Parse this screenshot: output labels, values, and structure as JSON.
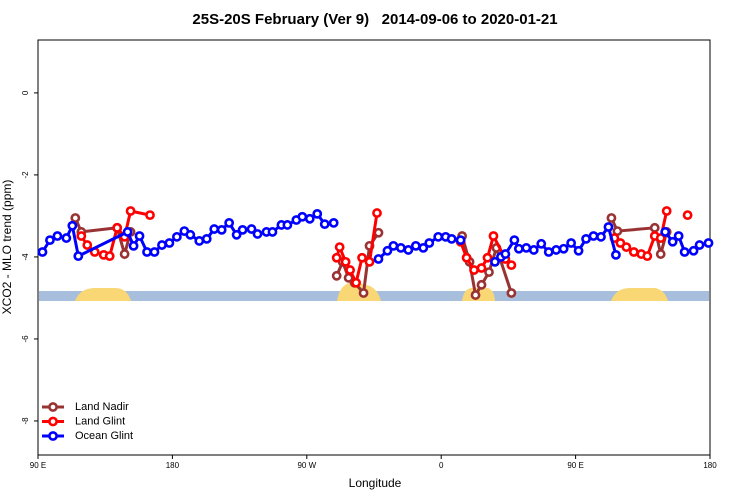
{
  "chart_data": {
    "type": "line",
    "title": "25S-20S February (Ver 9)   2014-09-06 to 2020-01-21",
    "x_label": "Longitude",
    "y_label": "XCO2 - MLO trend (ppm)",
    "xlim": [
      90,
      540
    ],
    "ylim": [
      -8.83,
      1.29
    ],
    "xticks": [
      {
        "value": 90,
        "label": "90 E"
      },
      180,
      {
        "value": 270,
        "label": "90 W"
      },
      {
        "value": 360,
        "label": "0"
      },
      {
        "value": 450,
        "label": "90 E"
      },
      {
        "value": 540,
        "label": "180"
      }
    ],
    "yticks": [
      0,
      -2,
      -4,
      -6,
      -8
    ],
    "legend": "bottom-left",
    "series": [
      {
        "name": "Land Nadir",
        "color": "#993333",
        "x": [
          115,
          119,
          143,
          148,
          152,
          null,
          290,
          294,
          298,
          302,
          308,
          312,
          318,
          null,
          374,
          379,
          383,
          387,
          392,
          397,
          407,
          null,
          474,
          478,
          503,
          507,
          511
        ],
        "values": [
          -3.05,
          -3.39,
          -3.29,
          -3.93,
          -3.39,
          null,
          -4.46,
          -4.12,
          -4.51,
          -4.63,
          -4.88,
          -3.73,
          -3.41,
          null,
          -3.49,
          -4.12,
          -4.93,
          -4.68,
          -4.37,
          -3.78,
          -4.88,
          null,
          -3.05,
          -3.37,
          -3.29,
          -3.93,
          -3.39
        ]
      },
      {
        "name": "Land Glint",
        "color": "#ff0000",
        "x": [
          119,
          123,
          128,
          134,
          138,
          143,
          148,
          152,
          165,
          null,
          290,
          292,
          296,
          299,
          303,
          307,
          312,
          317,
          null,
          373,
          377,
          382,
          387,
          391,
          395,
          403,
          407,
          null,
          476,
          480,
          484,
          489,
          494,
          498,
          503,
          507,
          511,
          null,
          525
        ],
        "values": [
          -3.49,
          -3.71,
          -3.88,
          -3.95,
          -3.98,
          -3.29,
          -3.51,
          -2.88,
          -2.98,
          null,
          -4.02,
          -3.76,
          -4.12,
          -4.32,
          -4.63,
          -4.02,
          -4.12,
          -2.93,
          null,
          -3.63,
          -4.02,
          -4.32,
          -4.27,
          -4.02,
          -3.49,
          -4.05,
          -4.2,
          null,
          -3.54,
          -3.66,
          -3.76,
          -3.88,
          -3.93,
          -3.98,
          -3.49,
          -3.54,
          -2.88,
          null,
          -2.98
        ]
      },
      {
        "name": "Ocean Glint",
        "color": "#0000ff",
        "x": [
          93,
          98,
          103,
          109,
          113,
          117,
          150,
          154,
          158,
          163,
          168,
          173,
          178,
          183,
          188,
          192,
          198,
          203,
          208,
          213,
          218,
          223,
          227,
          233,
          237,
          243,
          247,
          253,
          257,
          263,
          267,
          272,
          277,
          282,
          288,
          null,
          318,
          324,
          328,
          333,
          338,
          343,
          348,
          352,
          358,
          363,
          367,
          373,
          null,
          396,
          400,
          403,
          409,
          412,
          417,
          422,
          427,
          432,
          437,
          442,
          447,
          452,
          457,
          462,
          467,
          472,
          477,
          null,
          510,
          515,
          519,
          523,
          529,
          533,
          539
        ],
        "values": [
          -3.88,
          -3.59,
          -3.49,
          -3.54,
          -3.24,
          -3.98,
          -3.39,
          -3.73,
          -3.49,
          -3.88,
          -3.88,
          -3.71,
          -3.66,
          -3.51,
          -3.37,
          -3.46,
          -3.61,
          -3.56,
          -3.32,
          -3.34,
          -3.17,
          -3.46,
          -3.34,
          -3.32,
          -3.44,
          -3.39,
          -3.39,
          -3.22,
          -3.22,
          -3.1,
          -3.02,
          -3.07,
          -2.95,
          -3.2,
          -3.17,
          null,
          -4.05,
          -3.85,
          -3.73,
          -3.78,
          -3.83,
          -3.73,
          -3.78,
          -3.66,
          -3.51,
          -3.51,
          -3.56,
          -3.59,
          null,
          -4.12,
          -4.0,
          -3.93,
          -3.59,
          -3.8,
          -3.78,
          -3.83,
          -3.68,
          -3.88,
          -3.83,
          -3.8,
          -3.66,
          -3.85,
          -3.56,
          -3.49,
          -3.51,
          -3.27,
          -3.95,
          null,
          -3.39,
          -3.63,
          -3.49,
          -3.88,
          -3.85,
          -3.71,
          -3.66
        ]
      }
    ]
  }
}
